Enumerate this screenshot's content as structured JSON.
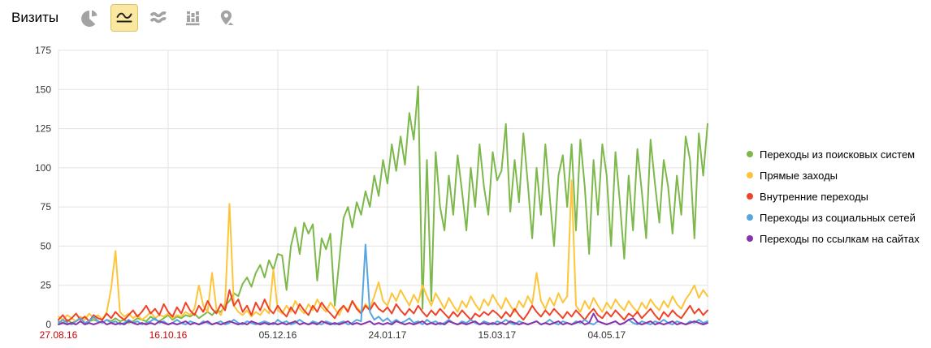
{
  "header": {
    "title": "Визиты"
  },
  "toolbar": {
    "icons": [
      {
        "name": "pie-chart-icon",
        "selected": false
      },
      {
        "name": "line-chart-icon",
        "selected": true
      },
      {
        "name": "stacked-area-icon",
        "selected": false
      },
      {
        "name": "bar-chart-icon",
        "selected": false
      },
      {
        "name": "map-pin-icon",
        "selected": false
      }
    ]
  },
  "legend": {
    "items": [
      {
        "label": "Переходы из поисковых систем",
        "color": "#7db84a"
      },
      {
        "label": "Прямые заходы",
        "color": "#fcc53a"
      },
      {
        "label": "Внутренние переходы",
        "color": "#ef4227"
      },
      {
        "label": "Переходы из социальных сетей",
        "color": "#58a6e0"
      },
      {
        "label": "Переходы по ссылкам на сайтах",
        "color": "#8833aa"
      }
    ]
  },
  "chart_data": {
    "type": "line",
    "title": "Визиты",
    "ylabel": "",
    "xlabel": "",
    "grid": true,
    "legend_position": "right",
    "ylim": [
      0,
      175
    ],
    "y_ticks": [
      0,
      25,
      50,
      75,
      100,
      125,
      150,
      175
    ],
    "total_days": 296,
    "sample_step_days": 2,
    "x_ticks": [
      {
        "label": "27.08.16",
        "day": 0,
        "weekend": true
      },
      {
        "label": "16.10.16",
        "day": 50,
        "weekend": true
      },
      {
        "label": "05.12.16",
        "day": 100,
        "weekend": false
      },
      {
        "label": "24.01.17",
        "day": 150,
        "weekend": false
      },
      {
        "label": "15.03.17",
        "day": 200,
        "weekend": false
      },
      {
        "label": "04.05.17",
        "day": 250,
        "weekend": false
      }
    ],
    "series": [
      {
        "name": "Переходы из поисковых систем",
        "color": "#7db84a",
        "values": [
          2,
          1,
          3,
          1,
          2,
          4,
          1,
          2,
          3,
          2,
          1,
          3,
          2,
          4,
          2,
          3,
          1,
          2,
          4,
          3,
          2,
          5,
          3,
          2,
          4,
          6,
          3,
          5,
          4,
          6,
          5,
          7,
          4,
          6,
          8,
          6,
          9,
          8,
          12,
          15,
          20,
          18,
          26,
          30,
          24,
          33,
          38,
          30,
          41,
          35,
          45,
          44,
          22,
          50,
          62,
          45,
          65,
          58,
          64,
          28,
          55,
          48,
          58,
          12,
          40,
          68,
          75,
          62,
          78,
          70,
          85,
          75,
          95,
          82,
          105,
          90,
          115,
          98,
          120,
          102,
          135,
          118,
          152,
          10,
          105,
          15,
          110,
          75,
          60,
          95,
          70,
          108,
          85,
          60,
          100,
          75,
          115,
          88,
          70,
          110,
          92,
          98,
          128,
          72,
          105,
          78,
          122,
          90,
          55,
          100,
          70,
          115,
          82,
          50,
          95,
          108,
          75,
          115,
          60,
          118,
          88,
          45,
          105,
          70,
          115,
          95,
          50,
          110,
          78,
          42,
          95,
          60,
          112,
          85,
          55,
          118,
          90,
          65,
          105,
          88,
          58,
          95,
          70,
          120,
          105,
          55,
          122,
          95,
          128
        ]
      },
      {
        "name": "Прямые заходы",
        "color": "#fcc53a",
        "values": [
          5,
          3,
          6,
          4,
          2,
          5,
          3,
          7,
          4,
          6,
          3,
          8,
          23,
          47,
          8,
          5,
          7,
          4,
          6,
          3,
          5,
          8,
          4,
          6,
          5,
          7,
          4,
          6,
          5,
          8,
          6,
          10,
          25,
          12,
          8,
          33,
          10,
          6,
          14,
          77,
          12,
          8,
          6,
          9,
          5,
          8,
          6,
          10,
          7,
          35,
          9,
          7,
          12,
          8,
          15,
          10,
          7,
          13,
          9,
          16,
          11,
          8,
          14,
          10,
          6,
          12,
          9,
          15,
          11,
          8,
          13,
          10,
          18,
          27,
          15,
          12,
          20,
          15,
          22,
          17,
          12,
          19,
          14,
          25,
          18,
          12,
          20,
          15,
          10,
          17,
          12,
          8,
          15,
          11,
          18,
          13,
          9,
          16,
          12,
          19,
          14,
          10,
          17,
          12,
          8,
          15,
          11,
          18,
          13,
          33,
          15,
          10,
          17,
          12,
          20,
          14,
          18,
          92,
          12,
          8,
          15,
          10,
          17,
          12,
          8,
          14,
          10,
          16,
          12,
          9,
          15,
          11,
          8,
          14,
          10,
          16,
          12,
          9,
          15,
          11,
          18,
          13,
          10,
          16,
          20,
          25,
          17,
          22,
          18
        ]
      },
      {
        "name": "Внутренние переходы",
        "color": "#ef4227",
        "values": [
          3,
          6,
          2,
          4,
          7,
          3,
          5,
          2,
          6,
          4,
          3,
          7,
          4,
          8,
          5,
          3,
          6,
          9,
          5,
          8,
          12,
          7,
          10,
          6,
          13,
          8,
          5,
          11,
          7,
          14,
          9,
          6,
          12,
          8,
          15,
          10,
          7,
          13,
          9,
          22,
          12,
          16,
          8,
          12,
          6,
          14,
          9,
          16,
          10,
          7,
          12,
          8,
          5,
          11,
          7,
          13,
          9,
          6,
          12,
          8,
          14,
          10,
          7,
          4,
          9,
          12,
          8,
          15,
          10,
          7,
          12,
          9,
          14,
          10,
          8,
          11,
          7,
          13,
          9,
          6,
          10,
          7,
          12,
          8,
          5,
          9,
          6,
          10,
          7,
          4,
          8,
          5,
          9,
          6,
          3,
          7,
          5,
          8,
          6,
          9,
          7,
          4,
          8,
          5,
          10,
          6,
          3,
          7,
          12,
          8,
          5,
          9,
          6,
          10,
          7,
          4,
          8,
          5,
          9,
          6,
          3,
          7,
          10,
          6,
          4,
          8,
          5,
          9,
          6,
          3,
          7,
          5,
          8,
          4,
          7,
          10,
          6,
          3,
          8,
          5,
          9,
          6,
          4,
          8,
          12,
          7,
          10,
          6,
          9
        ]
      },
      {
        "name": "Переходы из социальных сетей",
        "color": "#58a6e0",
        "values": [
          1,
          3,
          1,
          0,
          2,
          4,
          1,
          2,
          5,
          2,
          1,
          3,
          1,
          2,
          0,
          1,
          3,
          1,
          2,
          0,
          1,
          2,
          4,
          1,
          2,
          0,
          1,
          3,
          1,
          0,
          2,
          1,
          0,
          2,
          1,
          0,
          1,
          2,
          0,
          1,
          3,
          1,
          0,
          2,
          1,
          0,
          1,
          2,
          1,
          0,
          3,
          1,
          2,
          0,
          1,
          3,
          1,
          0,
          2,
          1,
          0,
          2,
          1,
          0,
          1,
          2,
          0,
          1,
          3,
          2,
          51,
          8,
          3,
          5,
          2,
          4,
          1,
          3,
          1,
          2,
          4,
          1,
          2,
          0,
          3,
          1,
          2,
          0,
          1,
          3,
          1,
          0,
          2,
          1,
          3,
          1,
          0,
          2,
          1,
          0,
          2,
          1,
          3,
          1,
          0,
          2,
          1,
          0,
          1,
          2,
          0,
          1,
          3,
          1,
          0,
          2,
          1,
          0,
          2,
          1,
          3,
          1,
          0,
          2,
          1,
          0,
          1,
          2,
          0,
          1,
          3,
          1,
          0,
          2,
          1,
          0,
          2,
          1,
          3,
          1,
          0,
          2,
          1,
          0,
          2,
          1,
          3,
          1,
          2
        ]
      },
      {
        "name": "Переходы по ссылкам на сайтах",
        "color": "#8833aa",
        "values": [
          0,
          1,
          0,
          1,
          0,
          2,
          0,
          1,
          0,
          1,
          2,
          0,
          1,
          0,
          1,
          0,
          2,
          1,
          0,
          1,
          0,
          1,
          0,
          2,
          1,
          0,
          1,
          0,
          1,
          2,
          0,
          1,
          0,
          1,
          2,
          0,
          1,
          0,
          1,
          2,
          1,
          0,
          1,
          0,
          2,
          1,
          0,
          1,
          0,
          1,
          0,
          1,
          0,
          1,
          2,
          0,
          1,
          0,
          1,
          0,
          2,
          1,
          0,
          1,
          0,
          1,
          2,
          0,
          1,
          0,
          1,
          2,
          0,
          1,
          0,
          1,
          0,
          2,
          1,
          0,
          1,
          0,
          1,
          2,
          0,
          1,
          0,
          1,
          0,
          2,
          1,
          0,
          1,
          0,
          1,
          2,
          0,
          1,
          0,
          1,
          0,
          1,
          0,
          2,
          1,
          0,
          1,
          0,
          1,
          2,
          0,
          1,
          0,
          1,
          2,
          0,
          1,
          0,
          1,
          2,
          0,
          1,
          7,
          2,
          1,
          0,
          1,
          2,
          0,
          1,
          3,
          4,
          1,
          0,
          1,
          2,
          0,
          1,
          0,
          1,
          2,
          0,
          1,
          0,
          1,
          2,
          1,
          0,
          1
        ]
      }
    ]
  }
}
